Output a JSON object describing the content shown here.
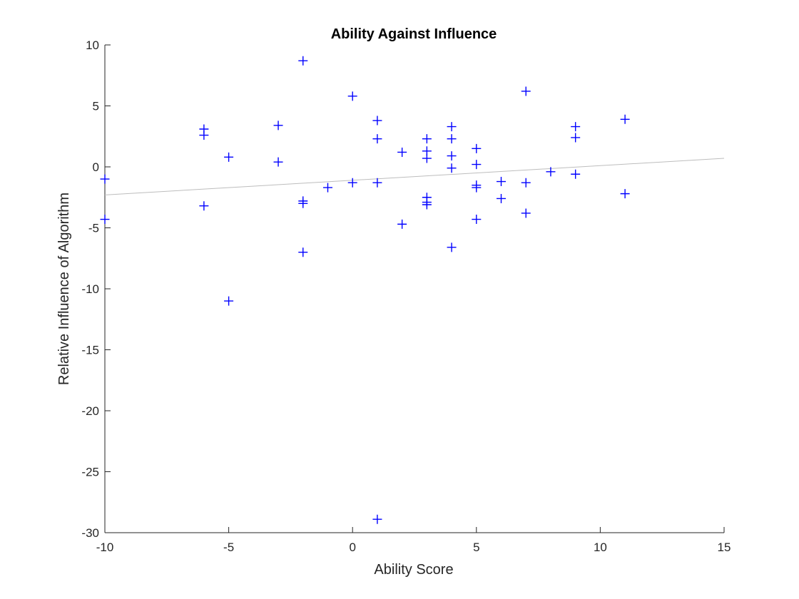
{
  "chart_data": {
    "type": "scatter",
    "title": "Ability Against Influence",
    "xlabel": "Ability Score",
    "ylabel": "Relative Influence of Algorithm",
    "xlim": [
      -10,
      15
    ],
    "ylim": [
      -30,
      10
    ],
    "xticks": [
      -10,
      -5,
      0,
      5,
      10,
      15
    ],
    "yticks": [
      -30,
      -25,
      -20,
      -15,
      -10,
      -5,
      0,
      5,
      10
    ],
    "xtick_labels": [
      "-10",
      "-5",
      "0",
      "5",
      "10",
      "15"
    ],
    "ytick_labels": [
      "-30",
      "-25",
      "-20",
      "-15",
      "-10",
      "-5",
      "0",
      "5",
      "10"
    ],
    "grid": false,
    "legend": "none",
    "marker": "+",
    "marker_color": "#0000ff",
    "trendline": {
      "x": [
        -10,
        15
      ],
      "y": [
        -2.3,
        0.7
      ],
      "color": "#bdbdbd"
    },
    "series": [
      {
        "points": [
          [
            -10,
            -1.0
          ],
          [
            -10,
            -4.3
          ],
          [
            -6,
            3.1
          ],
          [
            -6,
            2.6
          ],
          [
            -6,
            -3.2
          ],
          [
            -5,
            0.8
          ],
          [
            -5,
            -11.0
          ],
          [
            -3,
            3.4
          ],
          [
            -3,
            0.4
          ],
          [
            -2,
            8.7
          ],
          [
            -2,
            -2.8
          ],
          [
            -2,
            -3.0
          ],
          [
            -2,
            -7.0
          ],
          [
            -1,
            -1.7
          ],
          [
            0,
            5.8
          ],
          [
            0,
            -1.3
          ],
          [
            1,
            3.8
          ],
          [
            1,
            2.3
          ],
          [
            1,
            -1.3
          ],
          [
            1,
            -28.9
          ],
          [
            2,
            1.2
          ],
          [
            2,
            -4.7
          ],
          [
            3,
            2.3
          ],
          [
            3,
            1.3
          ],
          [
            3,
            0.7
          ],
          [
            3,
            -2.5
          ],
          [
            3,
            -2.9
          ],
          [
            3,
            -3.1
          ],
          [
            4,
            3.3
          ],
          [
            4,
            2.3
          ],
          [
            4,
            0.9
          ],
          [
            4,
            -0.1
          ],
          [
            4,
            -6.6
          ],
          [
            5,
            1.5
          ],
          [
            5,
            0.2
          ],
          [
            5,
            -1.5
          ],
          [
            5,
            -1.7
          ],
          [
            5,
            -4.3
          ],
          [
            6,
            -1.2
          ],
          [
            6,
            -2.6
          ],
          [
            7,
            6.2
          ],
          [
            7,
            -1.3
          ],
          [
            7,
            -3.8
          ],
          [
            8,
            -0.4
          ],
          [
            9,
            3.3
          ],
          [
            9,
            2.4
          ],
          [
            9,
            -0.6
          ],
          [
            11,
            3.9
          ],
          [
            11,
            -2.2
          ]
        ]
      }
    ]
  }
}
